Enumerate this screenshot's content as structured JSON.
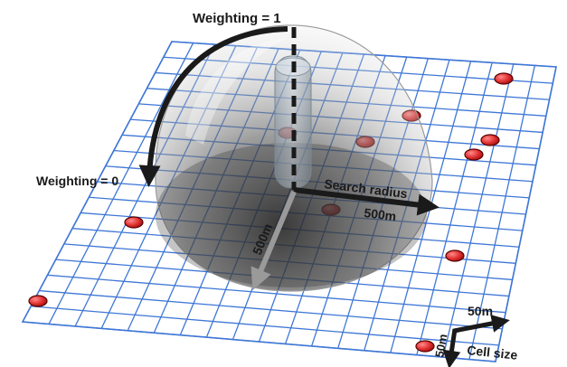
{
  "labels": {
    "weighting_top": "Weighting = 1",
    "weighting_bottom": "Weighting = 0",
    "search_radius": "Search radius",
    "radius_x": "500m",
    "radius_y": "500m",
    "cell_x": "50m",
    "cell_y": "50m",
    "cell_size": "Cell size"
  },
  "colors": {
    "grid_line": "#3f77d6",
    "point_fill": "#e03030",
    "point_edge": "#5a0000",
    "arrow": "#1a1a1a",
    "dome_shadow": "#3a3a3a"
  }
}
